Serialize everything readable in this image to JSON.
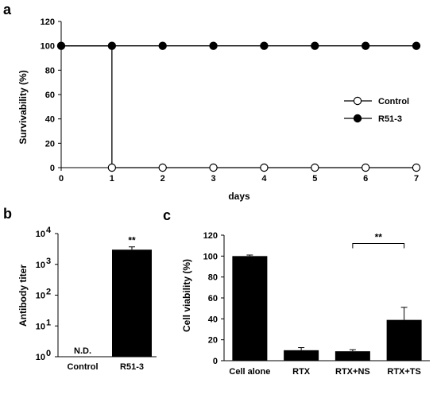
{
  "figure": {
    "panels": [
      "a",
      "b",
      "c"
    ]
  },
  "chart_data": [
    {
      "panel": "a",
      "type": "line",
      "xlabel": "days",
      "ylabel": "Survivability (%)",
      "xlim": [
        0,
        7
      ],
      "ylim": [
        0,
        120
      ],
      "xticks": [
        "0",
        "1",
        "2",
        "3",
        "4",
        "5",
        "6",
        "7"
      ],
      "yticks": [
        "0",
        "20",
        "40",
        "60",
        "80",
        "100",
        "120"
      ],
      "legend_position": "right",
      "series": [
        {
          "name": "Control",
          "marker": "open-circle",
          "color": "#000000",
          "x": [
            0,
            1,
            1,
            2,
            3,
            4,
            5,
            6,
            7
          ],
          "y": [
            100,
            100,
            0,
            0,
            0,
            0,
            0,
            0,
            0
          ],
          "marker_x": [
            1,
            2,
            3,
            4,
            5,
            6,
            7
          ],
          "marker_y": [
            0,
            0,
            0,
            0,
            0,
            0,
            0
          ]
        },
        {
          "name": "R51-3",
          "marker": "filled-circle",
          "color": "#000000",
          "x": [
            0,
            1,
            2,
            3,
            4,
            5,
            6,
            7
          ],
          "y": [
            100,
            100,
            100,
            100,
            100,
            100,
            100,
            100
          ],
          "marker_x": [
            0,
            1,
            2,
            3,
            4,
            5,
            6,
            7
          ],
          "marker_y": [
            100,
            100,
            100,
            100,
            100,
            100,
            100,
            100
          ]
        }
      ]
    },
    {
      "panel": "b",
      "type": "bar",
      "ylabel": "Antibody titer",
      "yscale": "log",
      "ylim": [
        1,
        10000
      ],
      "ytick_base": "10",
      "ytick_exponents": [
        "0",
        "1",
        "2",
        "3",
        "4"
      ],
      "categories": [
        "Control",
        "R51-3"
      ],
      "values": [
        null,
        3000
      ],
      "errors": [
        null,
        700
      ],
      "labels": [
        "N.D.",
        "**"
      ],
      "color": "#000000"
    },
    {
      "panel": "c",
      "type": "bar",
      "ylabel": "Cell viability (%)",
      "ylim": [
        0,
        120
      ],
      "yticks": [
        "0",
        "20",
        "40",
        "60",
        "80",
        "100",
        "120"
      ],
      "categories": [
        "Cell alone",
        "RTX",
        "RTX+NS",
        "RTX+TS"
      ],
      "values": [
        100,
        10,
        9,
        39
      ],
      "errors": [
        1,
        2.5,
        1.5,
        12
      ],
      "significance": {
        "from": "RTX+NS",
        "to": "RTX+TS",
        "label": "**",
        "y": 112
      },
      "color": "#000000"
    }
  ]
}
